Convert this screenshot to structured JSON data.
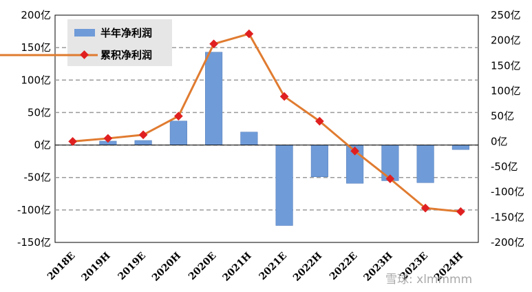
{
  "chart_data": {
    "type": "bar+line",
    "categories": [
      "2018E",
      "2019H",
      "2019E",
      "2020H",
      "2020E",
      "2021H",
      "2021E",
      "2022H",
      "2022E",
      "2023H",
      "2023E",
      "2024H"
    ],
    "series": [
      {
        "name": "半年净利润",
        "type": "bar",
        "axis": "left",
        "color": "#6f9bd8",
        "values": [
          0,
          6,
          7,
          37,
          143,
          20,
          -124,
          -49,
          -59,
          -55,
          -58,
          -7
        ]
      },
      {
        "name": "累积净利润",
        "type": "line",
        "axis": "right",
        "color": "#e07b30",
        "marker_color": "#e02020",
        "values": [
          0,
          6,
          13,
          50,
          193,
          213,
          89,
          40,
          -19,
          -74,
          -132,
          -139
        ]
      }
    ],
    "y_left": {
      "ylim": [
        -150,
        200
      ],
      "ticks": [
        "200亿",
        "150亿",
        "100亿",
        "50亿",
        "0亿",
        "-50亿",
        "-100亿",
        "-150亿"
      ]
    },
    "y_right": {
      "ylim": [
        -200,
        250
      ],
      "ticks": [
        "250亿",
        "200亿",
        "150亿",
        "100亿",
        "50亿",
        "0亿",
        "-50亿",
        "-100亿",
        "-150亿",
        "-200亿"
      ]
    },
    "grid": "horizontal dashed",
    "legend": "top-left"
  },
  "watermark": {
    "text": "雪球: xlmmmm"
  }
}
